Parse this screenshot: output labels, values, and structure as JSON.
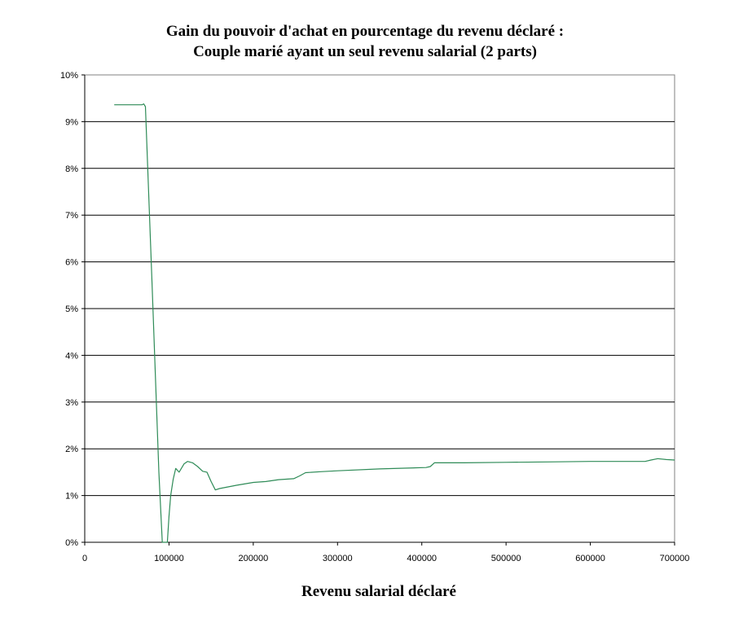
{
  "chart_data": {
    "type": "line",
    "title": "Gain du pouvoir d'achat en pourcentage du revenu déclaré  :",
    "subtitle": "Couple marié ayant un seul revenu salarial (2 parts)",
    "xlabel": "Revenu salarial déclaré",
    "ylabel": "",
    "xlim": [
      0,
      700000
    ],
    "ylim": [
      0,
      0.1
    ],
    "x_ticks": [
      0,
      100000,
      200000,
      300000,
      400000,
      500000,
      600000,
      700000
    ],
    "x_tick_labels": [
      "0",
      "100000",
      "200000",
      "300000",
      "400000",
      "500000",
      "600000",
      "700000"
    ],
    "y_ticks": [
      0,
      0.01,
      0.02,
      0.03,
      0.04,
      0.05,
      0.06,
      0.07,
      0.08,
      0.09,
      0.1
    ],
    "y_tick_labels": [
      "0%",
      "1%",
      "2%",
      "3%",
      "4%",
      "5%",
      "6%",
      "7%",
      "8%",
      "9%",
      "10%"
    ],
    "grid": "horizontal",
    "legend": "none",
    "line_color": "#2e8b57",
    "series": [
      {
        "x": [
          35000,
          60000,
          68000,
          70000,
          72000,
          80000,
          88000,
          92000,
          95000,
          98000,
          100000,
          102000,
          105000,
          108000,
          112000,
          118000,
          122000,
          128000,
          134000,
          140000,
          145000,
          150000,
          155000,
          160000,
          180000,
          200000,
          215000,
          230000,
          248000,
          255000,
          262000,
          280000,
          300000,
          350000,
          405000,
          410000,
          415000,
          450000,
          500000,
          550000,
          600000,
          665000,
          672000,
          680000,
          690000,
          700000
        ],
        "y": [
          0.0936,
          0.0936,
          0.0936,
          0.0938,
          0.0932,
          0.055,
          0.015,
          0.0,
          0.0,
          0.0,
          0.0055,
          0.01,
          0.0135,
          0.0158,
          0.015,
          0.0168,
          0.0173,
          0.017,
          0.0162,
          0.0152,
          0.015,
          0.013,
          0.0112,
          0.0115,
          0.0122,
          0.0128,
          0.013,
          0.0134,
          0.0136,
          0.0142,
          0.0149,
          0.0151,
          0.0153,
          0.0157,
          0.016,
          0.0162,
          0.017,
          0.017,
          0.0171,
          0.0172,
          0.0173,
          0.0173,
          0.0176,
          0.0179,
          0.0177,
          0.0176
        ]
      }
    ]
  }
}
